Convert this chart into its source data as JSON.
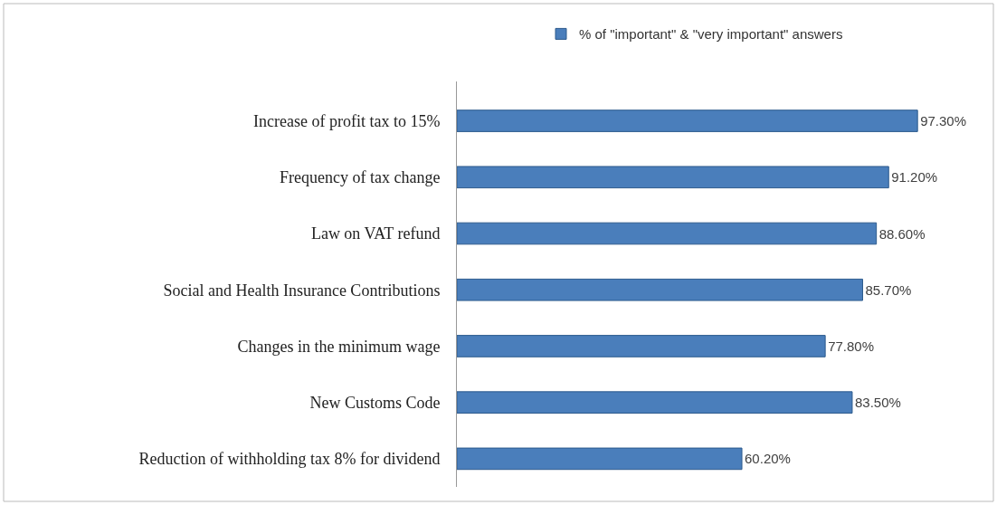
{
  "chart_data": {
    "type": "bar",
    "orientation": "horizontal",
    "categories": [
      "Increase of profit tax to 15%",
      "Frequency of tax change",
      "Law on VAT refund",
      "Social and Health Insurance Contributions",
      "Changes in the minimum wage",
      "New Customs Code",
      "Reduction of withholding tax 8% for dividend"
    ],
    "series": [
      {
        "name": "% of \"important\" & \"very important\" answers",
        "color": "#4a7ebb",
        "values": [
          97.3,
          91.2,
          88.6,
          85.7,
          77.8,
          83.5,
          60.2
        ],
        "value_labels": [
          "97.30%",
          "91.20%",
          "88.60%",
          "85.70%",
          "77.80%",
          "83.50%",
          "60.20%"
        ]
      }
    ],
    "legend": "top"
  }
}
